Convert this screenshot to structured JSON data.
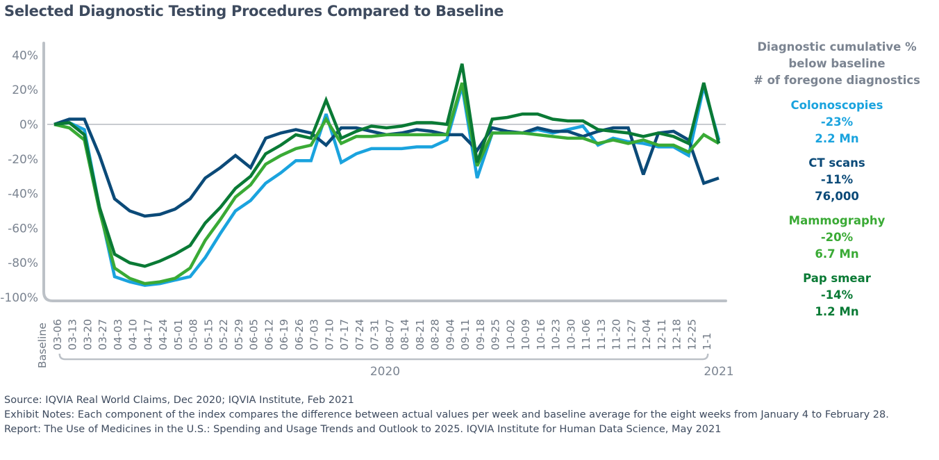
{
  "title": "Selected Diagnostic Testing Procedures Compared to Baseline",
  "legend": {
    "header": [
      "Diagnostic cumulative %",
      "below baseline",
      "# of foregone diagnostics"
    ],
    "items": [
      {
        "name": "Colonoscopies",
        "pct": "-23%",
        "count": "2.2 Mn",
        "color": "#1aa3de"
      },
      {
        "name": "CT scans",
        "pct": "-11%",
        "count": "76,000",
        "color": "#0b4a78"
      },
      {
        "name": "Mammography",
        "pct": "-20%",
        "count": "6.7 Mn",
        "color": "#3aaa35"
      },
      {
        "name": "Pap smear",
        "pct": "-14%",
        "count": "1.2 Mn",
        "color": "#0a7a35"
      }
    ]
  },
  "footer": {
    "source": "Source: IQVIA Real World Claims, Dec 2020; IQVIA Institute, Feb 2021",
    "notes": "Exhibit Notes: Each component of the index compares the difference between actual values per week and baseline average for the eight weeks from January 4 to February 28.",
    "report": "Report: The Use of Medicines in the U.S.: Spending and Usage Trends and Outlook to 2025. IQVIA Institute for Human Data Science, May 2021"
  },
  "chart_data": {
    "type": "line",
    "title": "Selected Diagnostic Testing Procedures Compared to Baseline",
    "xlabel": "",
    "ylabel": "",
    "ylim": [
      -100,
      40
    ],
    "yticks": [
      40,
      20,
      0,
      -20,
      -40,
      -60,
      -80,
      -100
    ],
    "ytick_labels": [
      "40%",
      "20%",
      "0%",
      "-20%",
      "-40%",
      "-60%",
      "-80%",
      "-100%"
    ],
    "grid": false,
    "zero_line": true,
    "legend_position": "right",
    "categories": [
      "Baseline",
      "03-06",
      "03-13",
      "03-20",
      "03-27",
      "04-03",
      "04-10",
      "04-17",
      "04-24",
      "05-01",
      "05-08",
      "05-15",
      "05-22",
      "05-29",
      "06-05",
      "06-12",
      "06-19",
      "06-26",
      "07-03",
      "07-10",
      "07-17",
      "07-24",
      "07-31",
      "08-07",
      "08-14",
      "08-21",
      "08-28",
      "09-04",
      "09-11",
      "09-18",
      "09-25",
      "10-02",
      "10-09",
      "10-16",
      "10-23",
      "10-30",
      "11-06",
      "11-13",
      "11-20",
      "11-27",
      "12-04",
      "12-11",
      "12-18",
      "12-25",
      "1-1"
    ],
    "year_groups": [
      {
        "label": "2020",
        "from": "03-06",
        "to": "12-25"
      },
      {
        "label": "2021",
        "from": "1-1",
        "to": "1-1"
      }
    ],
    "series": [
      {
        "name": "Colonoscopies",
        "color": "#1aa3de",
        "values": [
          0,
          1,
          -3,
          -48,
          -88,
          -91,
          -93,
          -92,
          -90,
          -88,
          -77,
          -63,
          -50,
          -44,
          -34,
          -28,
          -21,
          -21,
          6,
          -22,
          -17,
          -14,
          -14,
          -14,
          -13,
          -13,
          -9,
          22,
          -31,
          -5,
          -5,
          -5,
          -3,
          -5,
          -3,
          -1,
          -12,
          -8,
          -10,
          -11,
          -13,
          -13,
          -18,
          22,
          -9
        ]
      },
      {
        "name": "CT scans",
        "color": "#0b4a78",
        "values": [
          0,
          3,
          3,
          -18,
          -43,
          -50,
          -53,
          -52,
          -49,
          -43,
          -31,
          -25,
          -18,
          -25,
          -8,
          -5,
          -3,
          -5,
          -12,
          -2,
          -2,
          -4,
          -6,
          -5,
          -3,
          -4,
          -6,
          -6,
          -15,
          -2,
          -4,
          -5,
          -2,
          -4,
          -4,
          -7,
          -4,
          -2,
          -2,
          -29,
          -5,
          -4,
          -9,
          -34,
          -31
        ]
      },
      {
        "name": "Mammography",
        "color": "#3aaa35",
        "values": [
          0,
          -2,
          -9,
          -50,
          -83,
          -89,
          -92,
          -91,
          -89,
          -83,
          -67,
          -55,
          -42,
          -35,
          -23,
          -18,
          -14,
          -12,
          3,
          -11,
          -7,
          -7,
          -6,
          -6,
          -6,
          -6,
          -6,
          24,
          -24,
          -5,
          -5,
          -5,
          -6,
          -7,
          -8,
          -8,
          -11,
          -9,
          -11,
          -9,
          -12,
          -12,
          -16,
          -6,
          -11
        ]
      },
      {
        "name": "Pap smear",
        "color": "#0a7a35",
        "values": [
          0,
          1,
          -6,
          -48,
          -75,
          -80,
          -82,
          -79,
          -75,
          -70,
          -57,
          -48,
          -37,
          -30,
          -17,
          -12,
          -6,
          -8,
          14,
          -8,
          -4,
          -1,
          -2,
          -1,
          1,
          1,
          0,
          35,
          -22,
          3,
          4,
          6,
          6,
          3,
          2,
          2,
          -3,
          -4,
          -5,
          -7,
          -5,
          -7,
          -11,
          24,
          -11
        ]
      }
    ]
  }
}
